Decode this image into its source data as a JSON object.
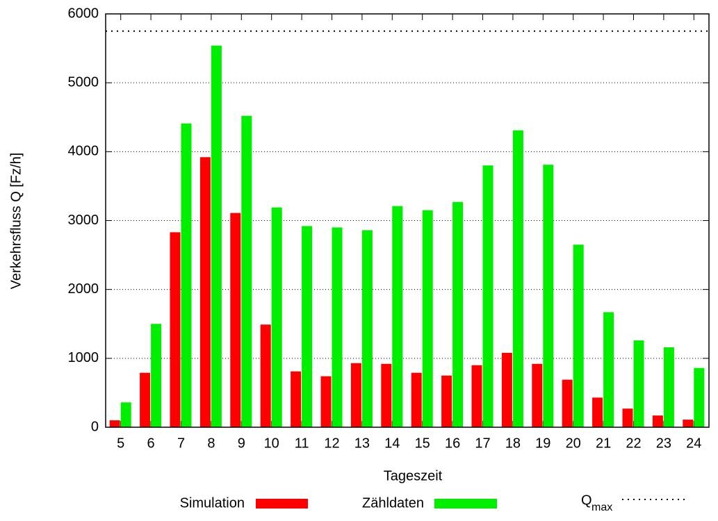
{
  "chart_data": {
    "type": "bar",
    "x_label": "Tageszeit",
    "y_label": "Verkehrsfluss Q [Fz/h]",
    "categories": [
      "5",
      "6",
      "7",
      "8",
      "9",
      "10",
      "11",
      "12",
      "13",
      "14",
      "15",
      "16",
      "17",
      "18",
      "19",
      "20",
      "21",
      "22",
      "23",
      "24"
    ],
    "series": [
      {
        "name": "Simulation",
        "color": "#ff0000",
        "values": [
          100,
          790,
          2830,
          3920,
          3110,
          1490,
          810,
          740,
          930,
          920,
          790,
          750,
          900,
          1080,
          920,
          690,
          430,
          270,
          170,
          110
        ]
      },
      {
        "name": "Zähldaten",
        "color": "#00ee00",
        "values": [
          360,
          1500,
          4410,
          5540,
          4520,
          3190,
          2920,
          2900,
          2860,
          3210,
          3150,
          3270,
          3800,
          4310,
          3810,
          2650,
          1670,
          1260,
          1160,
          860
        ]
      }
    ],
    "reference_line": {
      "name": "Q",
      "subscript": "max",
      "value": 5750
    },
    "ylim": [
      0,
      6000
    ],
    "yticks": [
      0,
      1000,
      2000,
      3000,
      4000,
      5000,
      6000
    ],
    "grid": true
  }
}
